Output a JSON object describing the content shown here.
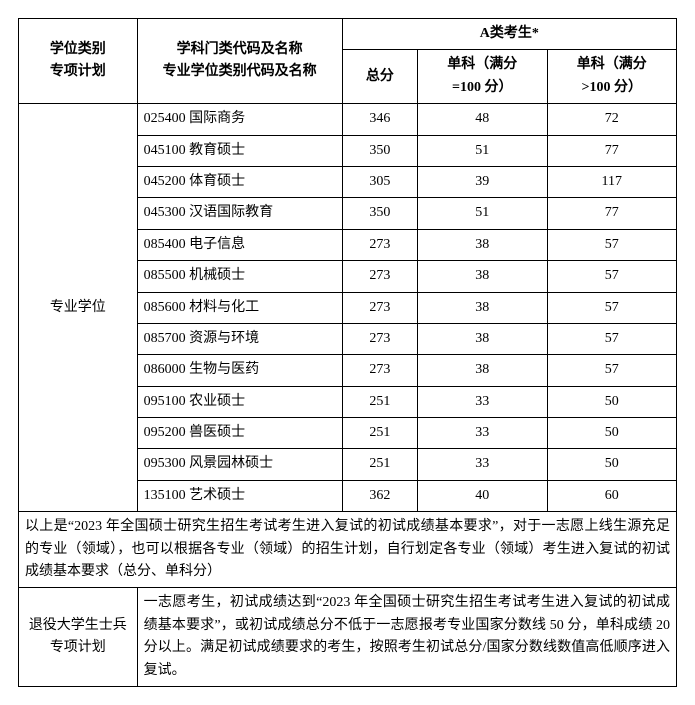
{
  "header": {
    "degree_type": "学位类别\n专项计划",
    "subject_code": "学科门类代码及名称\n专业学位类别代码及名称",
    "group_a": "A类考生*",
    "total": "总分",
    "sub100": "单科（满分\n=100 分）",
    "subgt100": "单科（满分\n>100 分）"
  },
  "degree_label": "专业学位",
  "rows": [
    {
      "subject": "025400 国际商务",
      "total": "346",
      "s100": "48",
      "sgt100": "72"
    },
    {
      "subject": "045100 教育硕士",
      "total": "350",
      "s100": "51",
      "sgt100": "77"
    },
    {
      "subject": "045200 体育硕士",
      "total": "305",
      "s100": "39",
      "sgt100": "117"
    },
    {
      "subject": "045300 汉语国际教育",
      "total": "350",
      "s100": "51",
      "sgt100": "77"
    },
    {
      "subject": "085400 电子信息",
      "total": "273",
      "s100": "38",
      "sgt100": "57"
    },
    {
      "subject": "085500 机械硕士",
      "total": "273",
      "s100": "38",
      "sgt100": "57"
    },
    {
      "subject": "085600 材料与化工",
      "total": "273",
      "s100": "38",
      "sgt100": "57"
    },
    {
      "subject": "085700 资源与环境",
      "total": "273",
      "s100": "38",
      "sgt100": "57"
    },
    {
      "subject": "086000 生物与医药",
      "total": "273",
      "s100": "38",
      "sgt100": "57"
    },
    {
      "subject": "095100 农业硕士",
      "total": "251",
      "s100": "33",
      "sgt100": "50"
    },
    {
      "subject": "095200 兽医硕士",
      "total": "251",
      "s100": "33",
      "sgt100": "50"
    },
    {
      "subject": "095300 风景园林硕士",
      "total": "251",
      "s100": "33",
      "sgt100": "50"
    },
    {
      "subject": "135100 艺术硕士",
      "total": "362",
      "s100": "40",
      "sgt100": "60"
    }
  ],
  "note": "以上是“2023 年全国硕士研究生招生考试考生进入复试的初试成绩基本要求”，对于一志愿上线生源充足的专业（领域），也可以根据各专业（领域）的招生计划，自行划定各专业（领域）考生进入复试的初试成绩基本要求（总分、单科分）",
  "veteran": {
    "label": "退役大学生士兵\n专项计划",
    "text": "一志愿考生，初试成绩达到“2023 年全国硕士研究生招生考试考生进入复试的初试成绩基本要求”，或初试成绩总分不低于一志愿报考专业国家分数线 50 分，单科成绩 20 分以上。满足初试成绩要求的考生，按照考生初试总分/国家分数线数值高低顺序进入复试。"
  }
}
